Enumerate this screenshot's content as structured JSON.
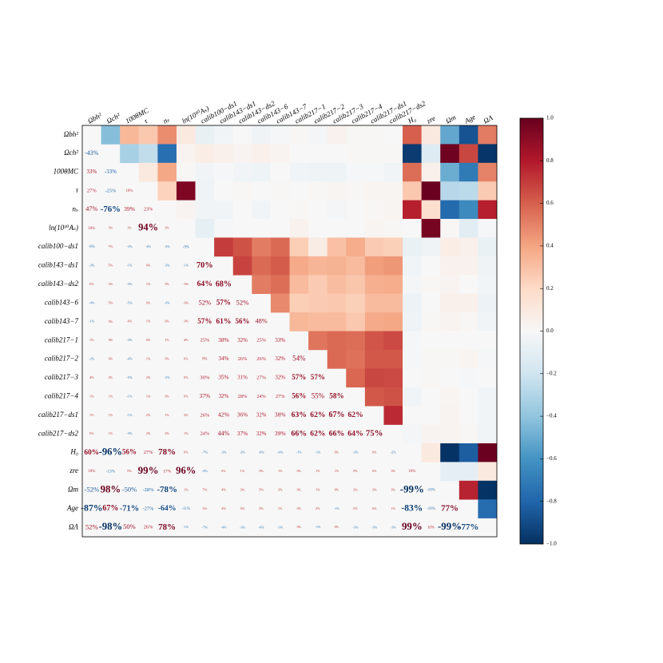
{
  "chart_data": {
    "type": "heatmap",
    "labels": [
      "Ωbh²",
      "Ωch²",
      "100θMC",
      "τ",
      "nₛ",
      "ln(10¹⁰Aₛ)",
      "calib100−ds1",
      "calib143−ds1",
      "calib143−ds2",
      "calib143−6",
      "calib143−7",
      "calib217−1",
      "calib217−2",
      "calib217−3",
      "calib217−4",
      "calib217−ds1",
      "calib217−ds2",
      "H₀",
      "zre",
      "Ωm",
      "Age",
      "ΩΛ"
    ],
    "values": [
      [
        -0.43
      ],
      [
        0.33,
        -0.33
      ],
      [
        0.27,
        -0.25,
        0.1
      ],
      [
        0.47,
        -0.76,
        0.39,
        0.23
      ],
      [
        0.1,
        0.03,
        0.01,
        0.94,
        0.03
      ],
      [
        -0.08,
        0.07,
        -0.03,
        -0.04,
        -0.03,
        -0.09
      ],
      [
        -0.03,
        0.05,
        -0.01,
        0.0,
        -0.03,
        -0.01,
        0.7
      ],
      [
        0.0,
        0.03,
        -0.03,
        0.01,
        0.0,
        0.0,
        0.64,
        0.68
      ],
      [
        -0.04,
        0.05,
        -0.05,
        0.0,
        -0.03,
        0.0,
        0.52,
        0.57,
        0.52
      ],
      [
        -0.01,
        0.03,
        0.0,
        0.01,
        0.0,
        0.0,
        0.57,
        0.61,
        0.56,
        0.48
      ],
      [
        0.01,
        0.0,
        -0.03,
        0.0,
        0.01,
        0.04,
        0.25,
        0.38,
        0.32,
        0.25,
        0.33
      ],
      [
        -0.02,
        0.0,
        -0.04,
        0.01,
        0.0,
        0.0,
        0.08,
        0.34,
        0.26,
        0.26,
        0.32,
        0.54
      ],
      [
        0.04,
        0.0,
        -0.05,
        0.02,
        -0.02,
        0.0,
        0.3,
        0.35,
        0.31,
        0.27,
        0.32,
        0.57,
        0.57
      ],
      [
        0.01,
        0.01,
        -0.01,
        0.01,
        0.0,
        0.0,
        0.37,
        0.32,
        0.28,
        0.24,
        0.27,
        0.56,
        0.55,
        0.58
      ],
      [
        0.01,
        0.01,
        -0.01,
        0.02,
        0.01,
        0.02,
        0.26,
        0.42,
        0.36,
        0.32,
        0.38,
        0.63,
        0.62,
        0.67,
        0.62
      ],
      [
        0.0,
        0.01,
        -0.03,
        0.02,
        0.02,
        0.01,
        0.24,
        0.44,
        0.37,
        0.32,
        0.39,
        0.66,
        0.62,
        0.66,
        0.64,
        0.75
      ],
      [
        0.6,
        -0.96,
        0.56,
        0.27,
        0.78,
        0.0,
        -0.07,
        -0.03,
        -0.02,
        -0.06,
        -0.04,
        -0.01,
        -0.01,
        0.0,
        -0.03,
        0.0,
        -0.02
      ],
      [
        0.1,
        -0.13,
        0.05,
        0.99,
        0.17,
        0.96,
        -0.04,
        0.0,
        0.01,
        0.0,
        0.01,
        0.0,
        0.01,
        0.01,
        0.0,
        0.0,
        0.03,
        0.1
      ],
      [
        -0.52,
        0.98,
        -0.5,
        -0.28,
        -0.78,
        0.01,
        0.07,
        0.04,
        0.03,
        0.05,
        0.03,
        0.0,
        0.01,
        0.0,
        0.02,
        0.03,
        0.03,
        -0.99,
        -0.1
      ],
      [
        -0.87,
        0.67,
        -0.71,
        -0.27,
        -0.64,
        -0.11,
        0.05,
        0.04,
        0.0,
        0.05,
        0.01,
        0.0,
        0.02,
        -0.01,
        0.0,
        0.0,
        0.01,
        -0.83,
        -0.1,
        0.77
      ],
      [
        0.52,
        -0.98,
        0.5,
        0.26,
        0.78,
        -0.01,
        -0.07,
        -0.04,
        -0.03,
        -0.06,
        -0.03,
        0.0,
        -0.01,
        0.0,
        -0.03,
        -0.03,
        -0.03,
        0.99,
        0.1,
        -0.99,
        -0.77
      ]
    ],
    "value_labels": [
      [
        "-43%"
      ],
      [
        "33%",
        "-33%"
      ],
      [
        "27%",
        "-25%",
        "10%"
      ],
      [
        "47%",
        "-76%",
        "39%",
        "23%"
      ],
      [
        "10%",
        "3%",
        "1%",
        "94%",
        "3%"
      ],
      [
        "-8%",
        "7%",
        "-3%",
        "-4%",
        "-3%",
        "-9%"
      ],
      [
        "-3%",
        "5%",
        "-1%",
        "0%",
        "-3%",
        "-1%",
        "70%"
      ],
      [
        "0%",
        "3%",
        "-3%",
        "1%",
        "0%",
        "-0%",
        "64%",
        "68%"
      ],
      [
        "-4%",
        "5%",
        "-5%",
        "0%",
        "-3%",
        "-0%",
        "52%",
        "57%",
        "52%"
      ],
      [
        "-1%",
        "3%",
        "-0%",
        "1%",
        "0%",
        "-0%",
        "57%",
        "61%",
        "56%",
        "48%"
      ],
      [
        "1%",
        "0%",
        "-3%",
        "0%",
        "1%",
        "4%",
        "25%",
        "38%",
        "32%",
        "25%",
        "33%"
      ],
      [
        "-2%",
        "0%",
        "-4%",
        "1%",
        "0%",
        "0%",
        "8%",
        "34%",
        "26%",
        "26%",
        "32%",
        "54%"
      ],
      [
        "4%",
        "0%",
        "-5%",
        "2%",
        "-2%",
        "0%",
        "30%",
        "35%",
        "31%",
        "27%",
        "32%",
        "57%",
        "57%"
      ],
      [
        "1%",
        "1%",
        "-1%",
        "1%",
        "0%",
        "0%",
        "37%",
        "32%",
        "28%",
        "24%",
        "27%",
        "56%",
        "55%",
        "58%"
      ],
      [
        "1%",
        "1%",
        "-1%",
        "2%",
        "1%",
        "2%",
        "26%",
        "42%",
        "36%",
        "32%",
        "38%",
        "63%",
        "62%",
        "67%",
        "62%"
      ],
      [
        "0%",
        "1%",
        "-3%",
        "2%",
        "2%",
        "1%",
        "24%",
        "44%",
        "37%",
        "32%",
        "39%",
        "66%",
        "62%",
        "66%",
        "64%",
        "75%"
      ],
      [
        "60%",
        "-96%",
        "56%",
        "27%",
        "78%",
        "0%",
        "-7%",
        "-3%",
        "-2%",
        "-6%",
        "-4%",
        "-1%",
        "-1%",
        "0%",
        "-3%",
        "0%",
        "-2%"
      ],
      [
        "10%",
        "-13%",
        "5%",
        "99%",
        "17%",
        "96%",
        "-4%",
        "0%",
        "1%",
        "0%",
        "1%",
        "0%",
        "1%",
        "1%",
        "0%",
        "0%",
        "3%",
        "10%"
      ],
      [
        "-52%",
        "98%",
        "-50%",
        "-28%",
        "-78%",
        "1%",
        "7%",
        "4%",
        "3%",
        "5%",
        "3%",
        "0%",
        "1%",
        "0%",
        "2%",
        "3%",
        "3%",
        "-99%",
        "-10%"
      ],
      [
        "-87%",
        "67%",
        "-71%",
        "-27%",
        "-64%",
        "-11%",
        "5%",
        "4%",
        "0%",
        "5%",
        "1%",
        "0%",
        "2%",
        "-1%",
        "0%",
        "0%",
        "1%",
        "-83%",
        "-10%",
        "77%"
      ],
      [
        "52%",
        "-98%",
        "50%",
        "26%",
        "78%",
        "-1%",
        "-7%",
        "-4%",
        "-3%",
        "-6%",
        "-3%",
        "0%",
        "-1%",
        "0%",
        "-3%",
        "-3%",
        "-3%",
        "99%",
        "10%",
        "-99%",
        "-77%"
      ]
    ],
    "colormap": [
      "#053061",
      "#2166ac",
      "#4393c3",
      "#92c5de",
      "#d1e5f0",
      "#f7f7f7",
      "#fddbc7",
      "#f4a582",
      "#d6604d",
      "#b2182b",
      "#67001f"
    ],
    "clim": [
      -1,
      1
    ],
    "cticks": [
      {
        "value": -1,
        "label": "−1.0"
      },
      {
        "value": -0.8,
        "label": "−0.8"
      },
      {
        "value": -0.6,
        "label": "−0.6"
      },
      {
        "value": -0.4,
        "label": "−0.4"
      },
      {
        "value": -0.2,
        "label": "−0.2"
      },
      {
        "value": 0,
        "label": "0.0"
      },
      0.2,
      0.4,
      0.6,
      0.8,
      {
        "value": 1,
        "label": "1.0"
      }
    ]
  }
}
